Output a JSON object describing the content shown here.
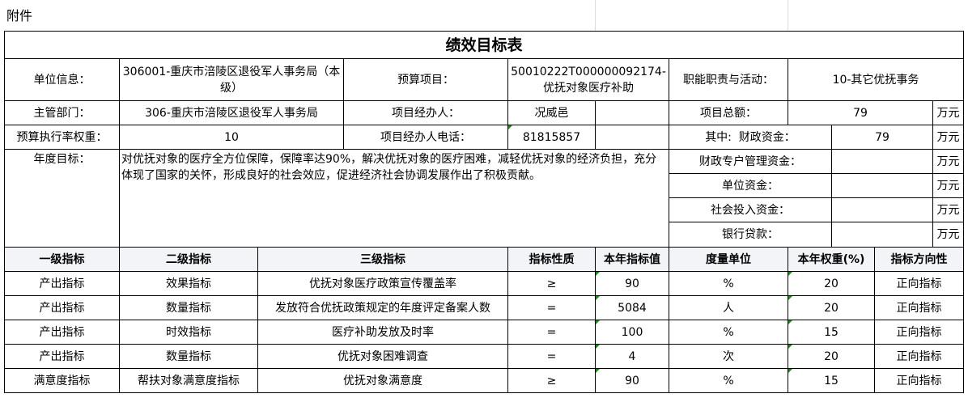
{
  "attachment_label": "附件",
  "title": "绩效目标表",
  "info": {
    "unit_label": "单位信息：",
    "unit_value": "306001-重庆市涪陵区退役军人事务局（本级）",
    "budget_item_label": "预算项目：",
    "budget_item_value": "50010222T000000092174-优抚对象医疗补助",
    "function_label": "职能职责与活动：",
    "function_value": "10-其它优抚事务",
    "dept_label": "主管部门：",
    "dept_value": "306-重庆市涪陵区退役军人事务局",
    "manager_label": "项目经办人：",
    "manager_value": "况威邑",
    "total_label": "项目总额：",
    "total_value": "79",
    "unit_wan": "万元",
    "exec_weight_label": "预算执行率权重：",
    "exec_weight_value": "10",
    "phone_label": "项目经办人电话：",
    "phone_value": "81815857",
    "fiscal_label": "其中:  财政资金：",
    "fiscal_value": "79",
    "goal_label": "年度目标：",
    "goal_text": "对优抚对象的医疗全方位保障，保障率达90%，解决优抚对象的医疗困难，减轻优抚对象的经济负担，充分体现了国家的关怀，形成良好的社会效应，促进经济社会协调发展作出了积极贡献。",
    "special_label": "财政专户管理资金：",
    "own_label": "单位资金：",
    "social_label": "社会投入资金：",
    "loan_label": "银行贷款："
  },
  "indicators": {
    "headers": [
      "一级指标",
      "二级指标",
      "三级指标",
      "指标性质",
      "本年指标值",
      "度量单位",
      "本年权重(%)",
      "指标方向性"
    ],
    "rows": [
      [
        "产出指标",
        "效果指标",
        "优抚对象医疗政策宣传覆盖率",
        "≥",
        "90",
        "%",
        "20",
        "正向指标"
      ],
      [
        "产出指标",
        "数量指标",
        "发放符合优抚政策规定的年度评定备案人数",
        "=",
        "5084",
        "人",
        "20",
        "正向指标"
      ],
      [
        "产出指标",
        "时效指标",
        "医疗补助发放及时率",
        "=",
        "100",
        "%",
        "15",
        "正向指标"
      ],
      [
        "产出指标",
        "数量指标",
        "优抚对象困难调查",
        "=",
        "4",
        "次",
        "20",
        "正向指标"
      ],
      [
        "满意度指标",
        "帮扶对象满意度指标",
        "优抚对象满意度",
        "≥",
        "90",
        "%",
        "15",
        "正向指标"
      ]
    ]
  }
}
